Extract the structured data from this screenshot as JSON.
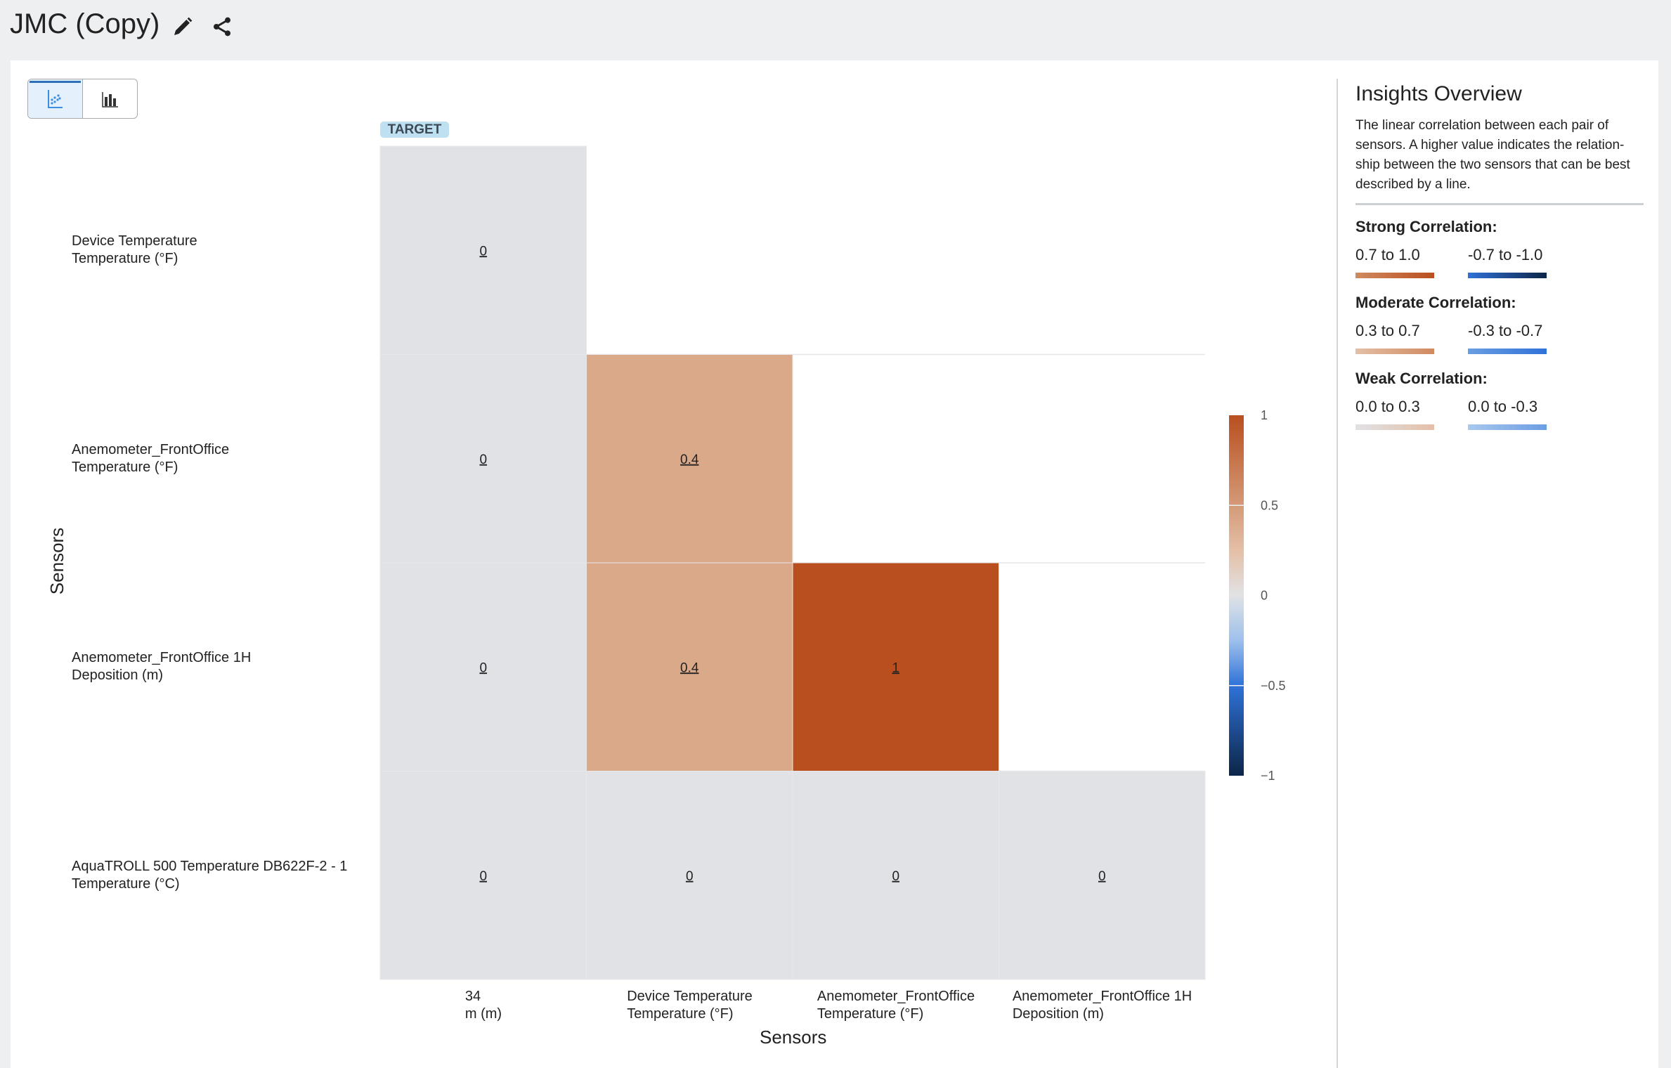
{
  "header": {
    "title": "JMC (Copy)",
    "icons": [
      "pencil-icon",
      "share-icon"
    ]
  },
  "toggle": {
    "options": [
      "scatter-chart-icon",
      "bar-chart-icon"
    ],
    "active": 0
  },
  "badge": "TARGET",
  "chart_data": {
    "type": "heatmap",
    "xlabel": "Sensors",
    "ylabel": "Sensors",
    "x_categories": [
      [
        "34",
        "m (m)"
      ],
      [
        "Device Temperature",
        "Temperature (°F)"
      ],
      [
        "Anemometer_FrontOffice",
        "Temperature (°F)"
      ],
      [
        "Anemometer_FrontOffice 1H",
        "Deposition (m)"
      ]
    ],
    "y_categories": [
      [
        "Device Temperature",
        "Temperature (°F)"
      ],
      [
        "Anemometer_FrontOffice",
        "Temperature (°F)"
      ],
      [
        "Anemometer_FrontOffice 1H",
        "Deposition (m)"
      ],
      [
        "AquaTROLL 500 Temperature DB622F-2 - 1",
        "Temperature (°C)"
      ]
    ],
    "values": [
      [
        0,
        null,
        null,
        null
      ],
      [
        0,
        0.4,
        null,
        null
      ],
      [
        0,
        0.4,
        1,
        null
      ],
      [
        0,
        0,
        0,
        0
      ]
    ],
    "colorbar": {
      "range": [
        -1,
        1
      ],
      "ticks": [
        "1",
        "0.5",
        "0",
        "−0.5",
        "−1"
      ],
      "tick_values": [
        1,
        0.5,
        0,
        -0.5,
        -1
      ]
    },
    "colorscale": [
      [
        -1,
        "#0c2548"
      ],
      [
        -0.5,
        "#2f72d8"
      ],
      [
        -0.25,
        "#9dc0ec"
      ],
      [
        0,
        "#e1e2e6"
      ],
      [
        0.25,
        "#e4bfa6"
      ],
      [
        0.5,
        "#d49a78"
      ],
      [
        1,
        "#b94f1f"
      ]
    ]
  },
  "insights": {
    "title": "Insights Overview",
    "description": "The linear correlation between each pair of sensors. A higher value indicates the relation-ship between the two sensors that can be best described by a line.",
    "groups": [
      {
        "title": "Strong Correlation:",
        "pos": "0.7 to 1.0",
        "neg": "-0.7 to -1.0",
        "pos_grad": [
          "#d08a60",
          "#b94f1f"
        ],
        "neg_grad": [
          "#2f72d8",
          "#0c2548"
        ]
      },
      {
        "title": "Moderate Correlation:",
        "pos": "0.3 to 0.7",
        "neg": "-0.3 to -0.7",
        "pos_grad": [
          "#e4bfa6",
          "#d08a60"
        ],
        "neg_grad": [
          "#6a9ee2",
          "#2f72d8"
        ]
      },
      {
        "title": "Weak Correlation:",
        "pos": "0.0 to 0.3",
        "neg": "0.0 to -0.3",
        "pos_grad": [
          "#e1e2e6",
          "#e4bfa6"
        ],
        "neg_grad": [
          "#a9c8ef",
          "#6a9ee2"
        ]
      }
    ]
  }
}
